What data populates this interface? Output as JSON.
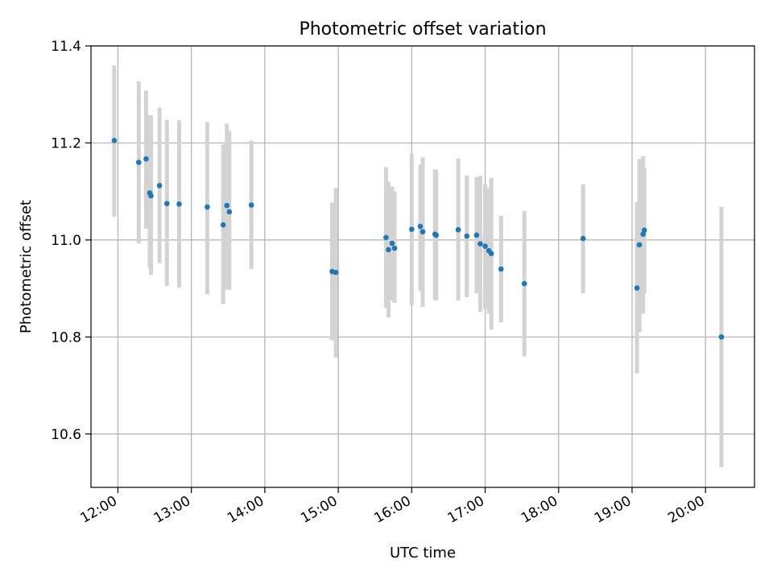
{
  "chart_data": {
    "type": "scatter",
    "title": "Photometric offset variation",
    "xlabel": "UTC time",
    "ylabel": "Photometric offset",
    "xlim": [
      "11:38",
      "20:40"
    ],
    "ylim": [
      10.49,
      11.4
    ],
    "x_ticks": [
      "12:00",
      "13:00",
      "14:00",
      "15:00",
      "16:00",
      "17:00",
      "18:00",
      "19:00",
      "20:00"
    ],
    "y_ticks": [
      "10.6",
      "10.8",
      "11.0",
      "11.2",
      "11.4"
    ],
    "grid": true,
    "colors": {
      "point": "#1f77b4",
      "errorbar": "#d3d3d3",
      "grid": "#b0b0b0"
    },
    "points": [
      {
        "x": "11:57",
        "y": 11.205,
        "lo": 11.048,
        "hi": 11.36
      },
      {
        "x": "12:17",
        "y": 11.16,
        "lo": 10.993,
        "hi": 11.327
      },
      {
        "x": "12:23",
        "y": 11.167,
        "lo": 11.023,
        "hi": 11.308
      },
      {
        "x": "12:26",
        "y": 11.097,
        "lo": 10.943,
        "hi": 11.257
      },
      {
        "x": "12:27",
        "y": 11.091,
        "lo": 10.928,
        "hi": 11.257
      },
      {
        "x": "12:34",
        "y": 11.112,
        "lo": 10.952,
        "hi": 11.273
      },
      {
        "x": "12:40",
        "y": 11.075,
        "lo": 10.905,
        "hi": 11.247
      },
      {
        "x": "12:50",
        "y": 11.074,
        "lo": 10.902,
        "hi": 11.247
      },
      {
        "x": "13:13",
        "y": 11.068,
        "lo": 10.888,
        "hi": 11.243
      },
      {
        "x": "13:26",
        "y": 11.031,
        "lo": 10.868,
        "hi": 11.197
      },
      {
        "x": "13:29",
        "y": 11.071,
        "lo": 10.898,
        "hi": 11.24
      },
      {
        "x": "13:31",
        "y": 11.058,
        "lo": 10.897,
        "hi": 11.225
      },
      {
        "x": "13:49",
        "y": 11.072,
        "lo": 10.94,
        "hi": 11.205
      },
      {
        "x": "14:55",
        "y": 10.935,
        "lo": 10.793,
        "hi": 11.077
      },
      {
        "x": "14:58",
        "y": 10.933,
        "lo": 10.758,
        "hi": 11.107
      },
      {
        "x": "15:39",
        "y": 11.005,
        "lo": 10.86,
        "hi": 11.15
      },
      {
        "x": "15:41",
        "y": 10.98,
        "lo": 10.84,
        "hi": 11.12
      },
      {
        "x": "15:44",
        "y": 10.993,
        "lo": 10.875,
        "hi": 11.11
      },
      {
        "x": "15:46",
        "y": 10.983,
        "lo": 10.87,
        "hi": 11.1
      },
      {
        "x": "16:00",
        "y": 11.022,
        "lo": 10.865,
        "hi": 11.178
      },
      {
        "x": "16:07",
        "y": 11.028,
        "lo": 10.895,
        "hi": 11.155
      },
      {
        "x": "16:09",
        "y": 11.017,
        "lo": 10.862,
        "hi": 11.17
      },
      {
        "x": "16:19",
        "y": 11.012,
        "lo": 10.877,
        "hi": 11.145
      },
      {
        "x": "16:20",
        "y": 11.01,
        "lo": 10.875,
        "hi": 11.145
      },
      {
        "x": "16:38",
        "y": 11.021,
        "lo": 10.875,
        "hi": 11.168
      },
      {
        "x": "16:45",
        "y": 11.008,
        "lo": 10.882,
        "hi": 11.133
      },
      {
        "x": "16:53",
        "y": 11.01,
        "lo": 10.89,
        "hi": 11.13
      },
      {
        "x": "16:56",
        "y": 10.992,
        "lo": 10.852,
        "hi": 11.132
      },
      {
        "x": "17:00",
        "y": 10.987,
        "lo": 10.858,
        "hi": 11.115
      },
      {
        "x": "17:03",
        "y": 10.978,
        "lo": 10.848,
        "hi": 11.107
      },
      {
        "x": "17:05",
        "y": 10.972,
        "lo": 10.815,
        "hi": 11.128
      },
      {
        "x": "17:13",
        "y": 10.94,
        "lo": 10.83,
        "hi": 11.05
      },
      {
        "x": "17:32",
        "y": 10.91,
        "lo": 10.76,
        "hi": 11.06
      },
      {
        "x": "18:20",
        "y": 11.003,
        "lo": 10.89,
        "hi": 11.115
      },
      {
        "x": "19:04",
        "y": 10.901,
        "lo": 10.725,
        "hi": 11.078
      },
      {
        "x": "19:06",
        "y": 10.99,
        "lo": 10.81,
        "hi": 11.167
      },
      {
        "x": "19:09",
        "y": 11.012,
        "lo": 10.848,
        "hi": 11.173
      },
      {
        "x": "19:10",
        "y": 11.02,
        "lo": 10.89,
        "hi": 11.148
      },
      {
        "x": "20:13",
        "y": 10.8,
        "lo": 10.532,
        "hi": 11.068
      }
    ]
  }
}
